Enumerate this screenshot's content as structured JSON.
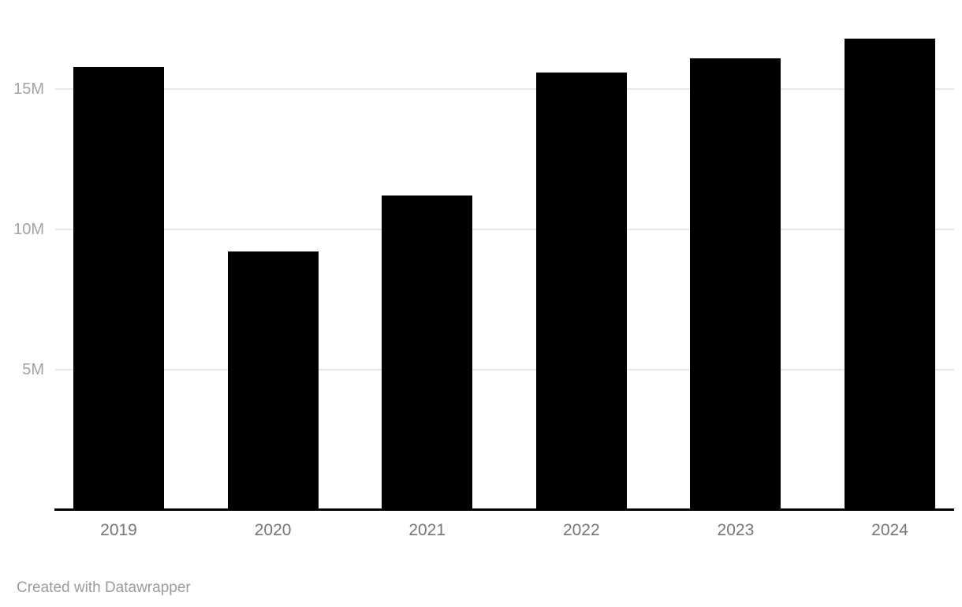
{
  "chart_data": {
    "type": "bar",
    "title": "",
    "categories": [
      "2019",
      "2020",
      "2021",
      "2022",
      "2023",
      "2024"
    ],
    "values": [
      15.8,
      9.2,
      11.2,
      15.6,
      16.1,
      16.8
    ],
    "value_unit": "millions (M)",
    "xlabel": "",
    "ylabel": "",
    "ylim": [
      0,
      17.4
    ],
    "yticks": [
      {
        "value": 5,
        "label": "5M"
      },
      {
        "value": 10,
        "label": "10M"
      },
      {
        "value": 15,
        "label": "15M"
      }
    ],
    "grid": true,
    "legend": "none",
    "bar_color": "#000000"
  },
  "colors": {
    "background": "#ffffff",
    "bar": "#000000",
    "gridline": "#e7e7e7",
    "axis_line": "#000000",
    "y_tick_label": "#a3a3a3",
    "x_tick_label": "#757575",
    "footer_text": "#9b9b9b"
  },
  "footer": {
    "attribution": "Created with Datawrapper"
  }
}
